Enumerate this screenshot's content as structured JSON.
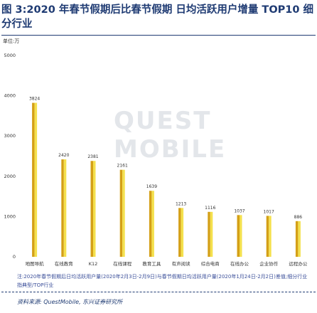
{
  "title": "图 3:2020 年春节假期后比春节假期 日均活跃用户增量 TOP10 细分行业",
  "unit": "单位:万",
  "note": "注:2020年春节假期后日均活跃用户量(2020年2月3日-2月9日)与春节假期日均活跃用户量(2020年1月24日-2月2日)差值;细分行业指典型/TOP行业",
  "source": "资料来源: QuestMobile, 东兴证券研究所",
  "watermark": "QUEST MOBILE",
  "colors": {
    "bar_dark": "#d4a017",
    "bar_light": "#f4e04d",
    "text": "#1f3b73"
  },
  "chart_data": {
    "type": "bar",
    "title": "2020 年春节假期后比春节假期 日均活跃用户增量 TOP10 细分行业",
    "ylabel": "单位:万",
    "ylim": [
      0,
      5000
    ],
    "yticks": [
      "0",
      "1000",
      "2000",
      "3000",
      "4000",
      "5000"
    ],
    "categories": [
      "地图导航",
      "在线教育",
      "K12",
      "在线课程",
      "教育工具",
      "有声阅读",
      "综合电商",
      "在线办公",
      "企业协作",
      "远程办公"
    ],
    "values": [
      3824,
      2420,
      2381,
      2161,
      1639,
      1213,
      1116,
      1037,
      1017,
      886
    ],
    "value_labels": [
      "3824",
      "2420",
      "2381",
      "2161",
      "1639",
      "1213",
      "1116",
      "1037",
      "1017",
      "886"
    ]
  }
}
